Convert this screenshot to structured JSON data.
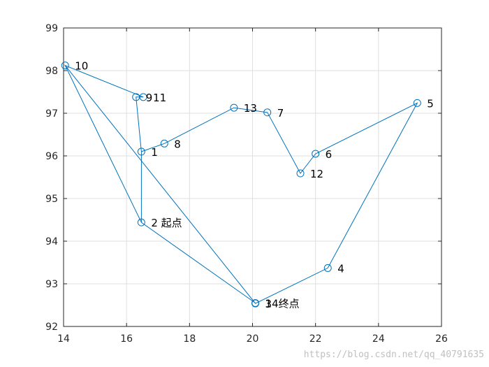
{
  "chart_data": {
    "type": "line",
    "title": "",
    "xlabel": "",
    "ylabel": "",
    "xlim": [
      14,
      26
    ],
    "ylim": [
      92,
      99
    ],
    "xticks": [
      14,
      16,
      18,
      20,
      22,
      24,
      26
    ],
    "yticks": [
      92,
      93,
      94,
      95,
      96,
      97,
      98,
      99
    ],
    "grid": true,
    "line_color": "#0072BD",
    "marker": "circle-open",
    "route_order": [
      2,
      1,
      9,
      11,
      10,
      3,
      4,
      5,
      6,
      12,
      7,
      13,
      8,
      1,
      9,
      11,
      10,
      2,
      14
    ],
    "points": [
      {
        "id": 1,
        "label": "1",
        "x": 16.47,
        "y": 96.1
      },
      {
        "id": 2,
        "label": "2 起点",
        "x": 16.47,
        "y": 94.44
      },
      {
        "id": 3,
        "label": "3",
        "x": 20.09,
        "y": 92.54
      },
      {
        "id": 4,
        "label": "4",
        "x": 22.39,
        "y": 93.37
      },
      {
        "id": 5,
        "label": "5",
        "x": 25.23,
        "y": 97.24
      },
      {
        "id": 6,
        "label": "6",
        "x": 22.0,
        "y": 96.05
      },
      {
        "id": 7,
        "label": "7",
        "x": 20.47,
        "y": 97.02
      },
      {
        "id": 8,
        "label": "8",
        "x": 17.2,
        "y": 96.29
      },
      {
        "id": 9,
        "label": "9",
        "x": 16.3,
        "y": 97.38
      },
      {
        "id": 10,
        "label": "10",
        "x": 14.05,
        "y": 98.12
      },
      {
        "id": 11,
        "label": "11",
        "x": 16.53,
        "y": 97.38
      },
      {
        "id": 12,
        "label": "12",
        "x": 21.52,
        "y": 95.59
      },
      {
        "id": 13,
        "label": "13",
        "x": 19.41,
        "y": 97.13
      },
      {
        "id": 14,
        "label": "14终点",
        "x": 20.09,
        "y": 92.55
      }
    ]
  },
  "watermark": "https://blog.csdn.net/qq_40791635"
}
